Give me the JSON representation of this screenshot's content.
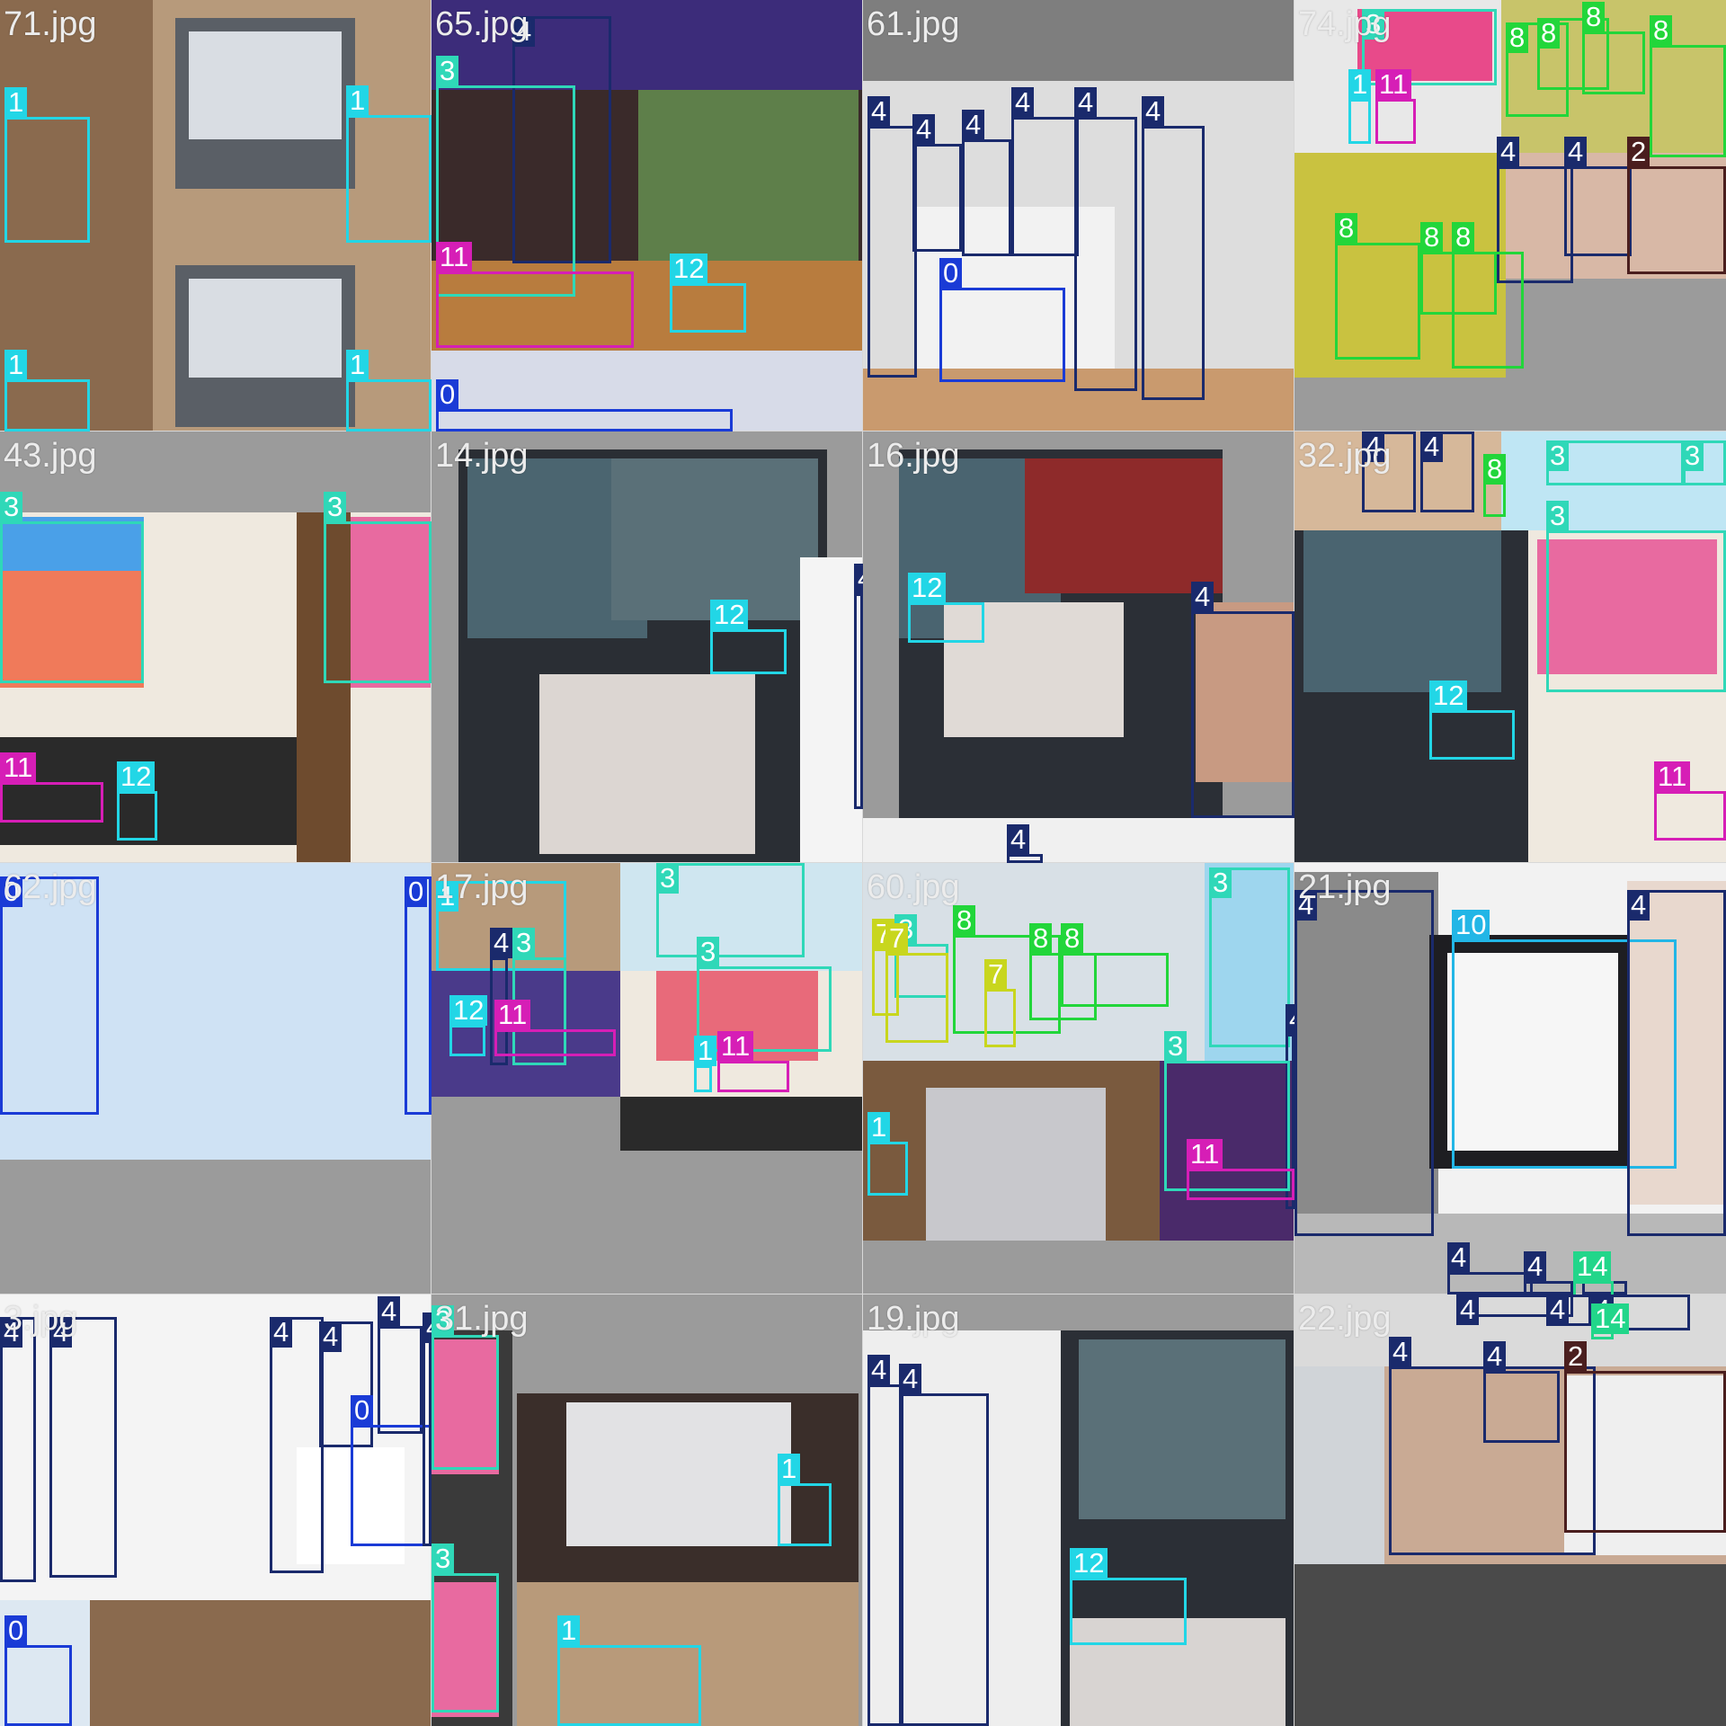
{
  "mosaic": {
    "tiles": [
      {
        "name": "71.jpg"
      },
      {
        "name": "65.jpg"
      },
      {
        "name": "61.jpg"
      },
      {
        "name": "74.jpg"
      },
      {
        "name": "43.jpg"
      },
      {
        "name": "14.jpg"
      },
      {
        "name": "16.jpg"
      },
      {
        "name": "32.jpg"
      },
      {
        "name": "62.jpg"
      },
      {
        "name": "17.jpg"
      },
      {
        "name": "60.jpg"
      },
      {
        "name": "21.jpg"
      },
      {
        "name": "3.jpg"
      },
      {
        "name": "31.jpg"
      },
      {
        "name": "19.jpg"
      },
      {
        "name": "22.jpg"
      }
    ]
  },
  "class_colors": {
    "0": "#1a3bd6",
    "1": "#22d6e6",
    "2": "#4a1e1e",
    "3": "#2fd8b8",
    "4": "#1a2a6c",
    "7": "#c8d61e",
    "8": "#22d63a",
    "10": "#22b6e6",
    "11": "#d61eb6",
    "12": "#22d6e6",
    "14": "#22d68a"
  },
  "labels": {
    "0": "0",
    "1": "1",
    "2": "2",
    "3": "3",
    "4": "4",
    "7": "7",
    "8": "8",
    "10": "10",
    "11": "11",
    "12": "12",
    "14": "14"
  }
}
